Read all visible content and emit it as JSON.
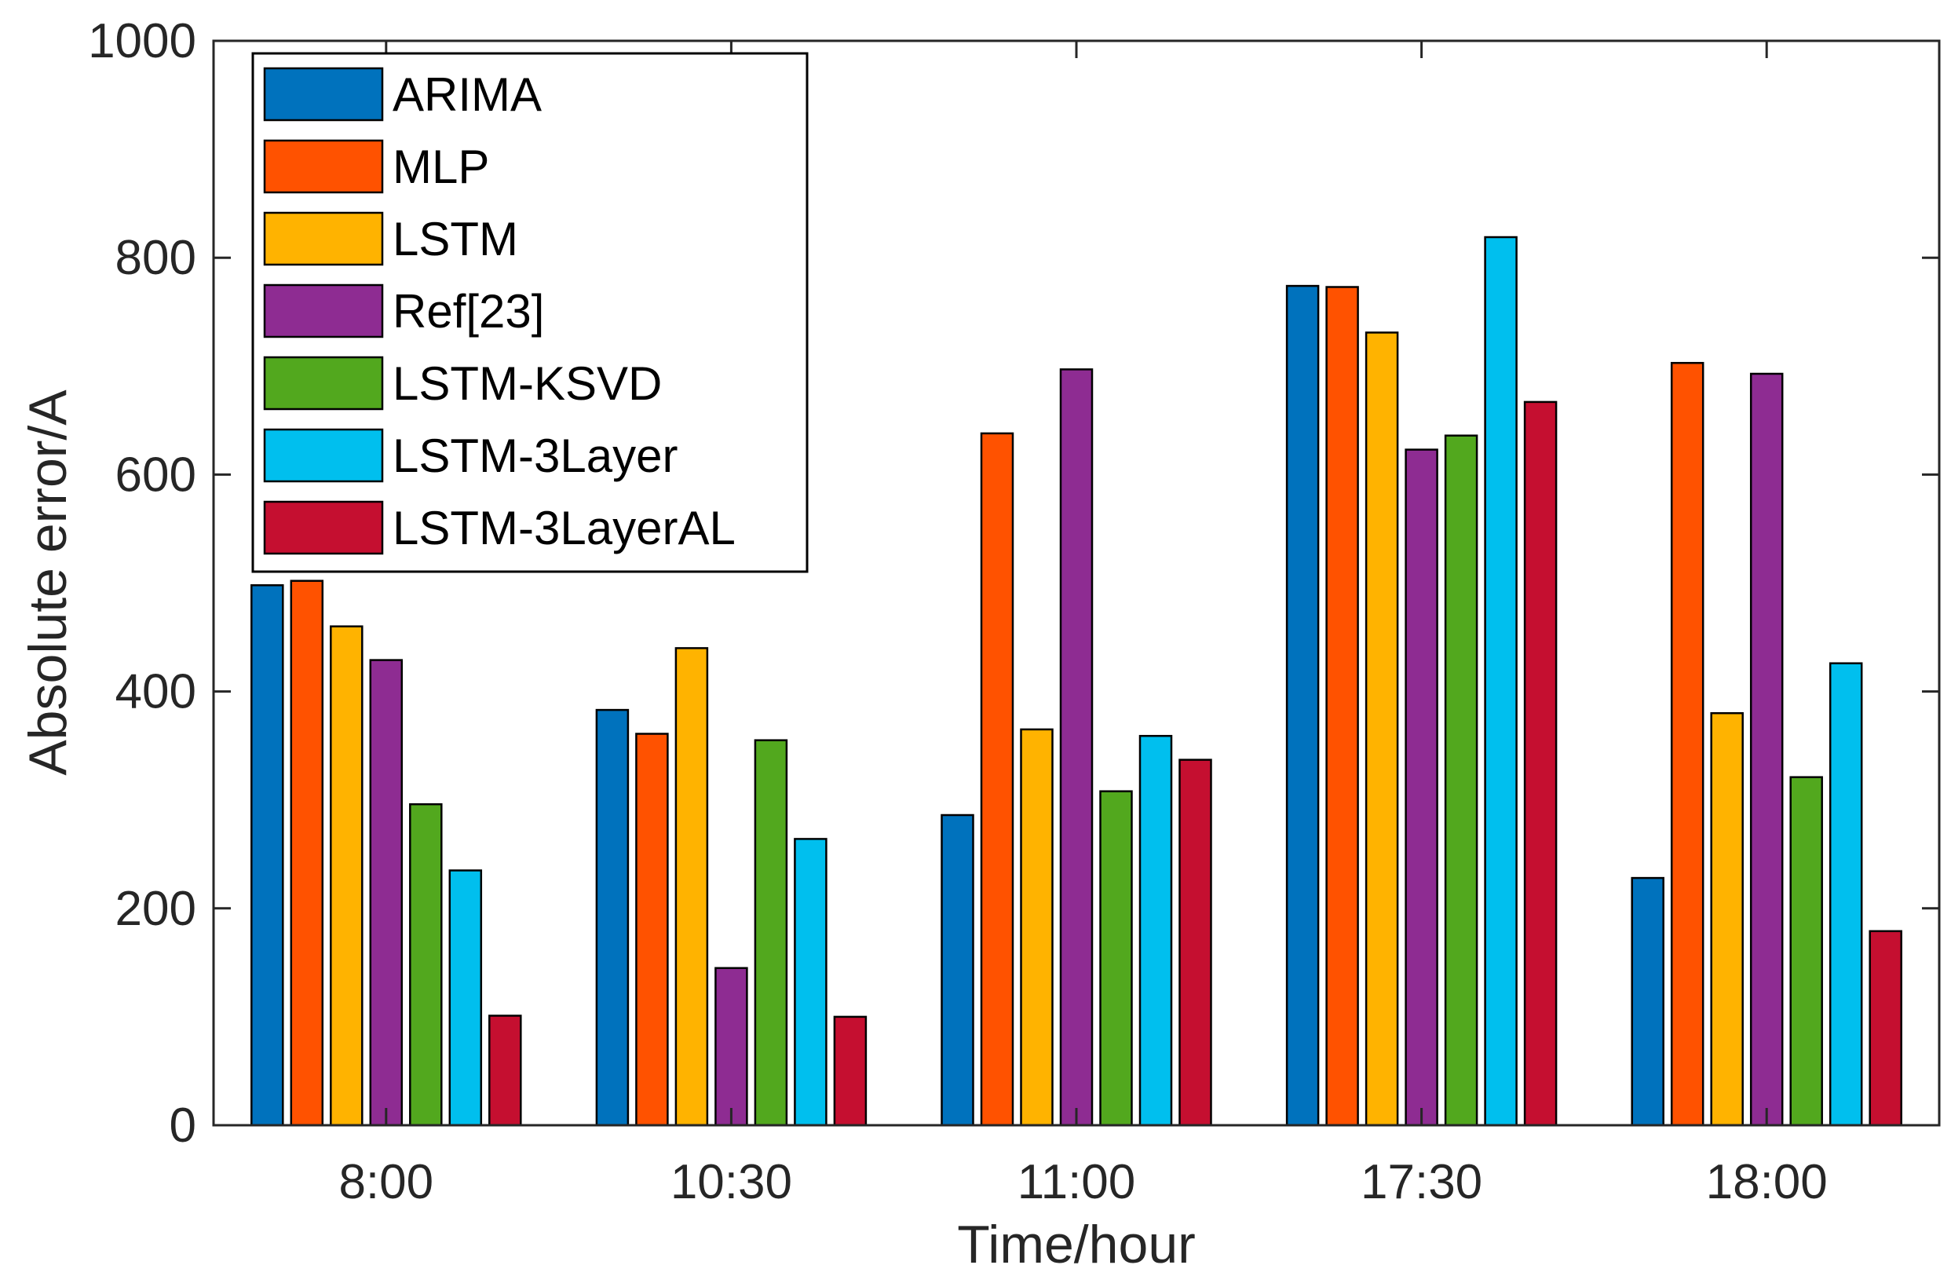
{
  "chart_data": {
    "type": "bar",
    "categories": [
      "8:00",
      "10:30",
      "11:00",
      "17:30",
      "18:00"
    ],
    "series": [
      {
        "name": "ARIMA",
        "color": "#0072BD",
        "values": [
          498,
          383,
          286,
          774,
          228
        ]
      },
      {
        "name": "MLP",
        "color": "#FF5200",
        "values": [
          502,
          361,
          638,
          773,
          703
        ]
      },
      {
        "name": "LSTM",
        "color": "#FFB300",
        "values": [
          460,
          440,
          365,
          731,
          380
        ]
      },
      {
        "name": "Ref[23]",
        "color": "#8E2C92",
        "values": [
          429,
          145,
          697,
          623,
          693
        ]
      },
      {
        "name": "LSTM-KSVD",
        "color": "#52A81E",
        "values": [
          296,
          355,
          308,
          636,
          321
        ]
      },
      {
        "name": "LSTM-3Layer",
        "color": "#00BFEE",
        "values": [
          235,
          264,
          359,
          819,
          426
        ]
      },
      {
        "name": "LSTM-3LayerAL",
        "color": "#C50F30",
        "values": [
          101,
          100,
          337,
          667,
          179
        ]
      }
    ],
    "xlabel": "Time/hour",
    "ylabel": "Absolute error/A",
    "ylim": [
      0,
      1000
    ],
    "yticks": [
      0,
      200,
      400,
      600,
      800,
      1000
    ],
    "grid": false,
    "legend_position": "top-left"
  }
}
